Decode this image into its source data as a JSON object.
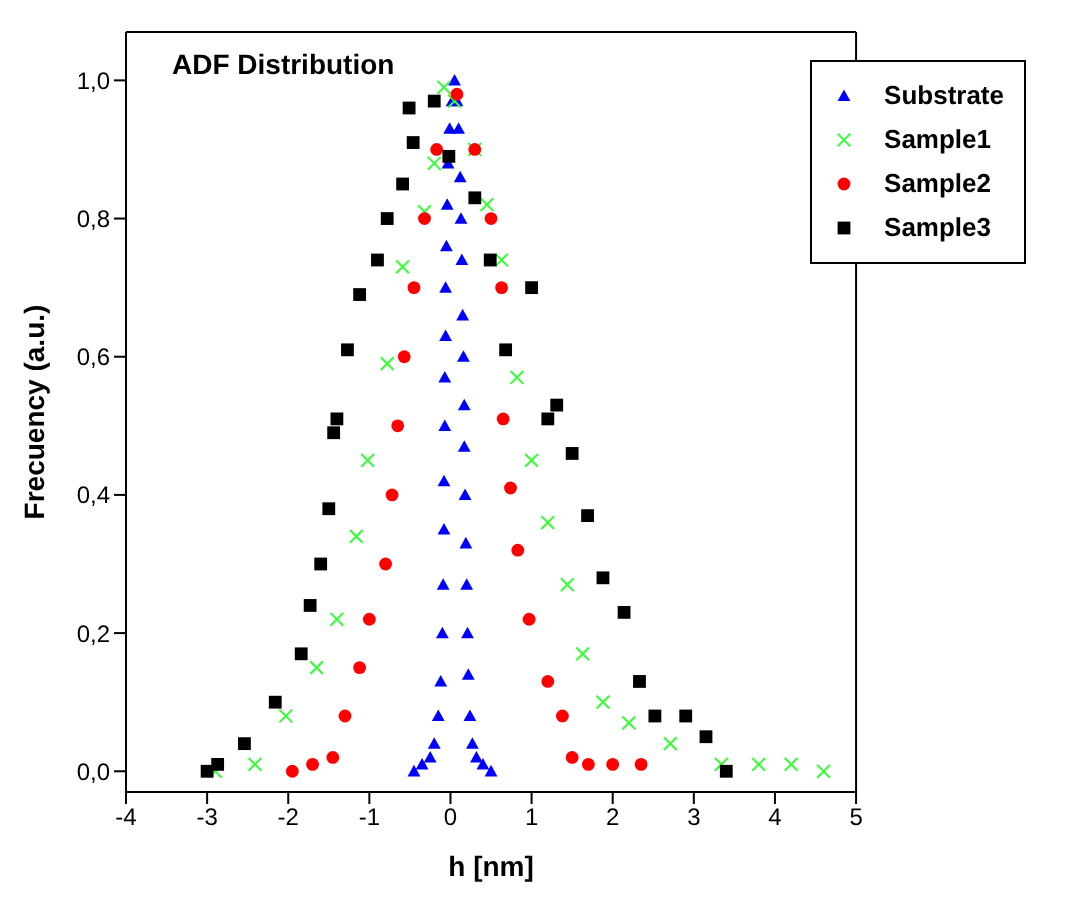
{
  "chart_data": {
    "type": "scatter",
    "title": "ADF Distribution",
    "xlabel": "h [nm]",
    "ylabel": "Frecuency (a.u.)",
    "xlim": [
      -4,
      5
    ],
    "xticks": [
      -4,
      -3,
      -2,
      -1,
      0,
      1,
      2,
      3,
      4,
      5
    ],
    "ylim": [
      -0.03,
      1.07
    ],
    "yticks": [
      {
        "value": 0,
        "label": "0,0"
      },
      {
        "value": 0.2,
        "label": "0,2"
      },
      {
        "value": 0.4,
        "label": "0,4"
      },
      {
        "value": 0.6,
        "label": "0,6"
      },
      {
        "value": 0.8,
        "label": "0,8"
      },
      {
        "value": 1,
        "label": "1,0"
      }
    ],
    "legend": "top right",
    "series": [
      {
        "name": "Substrate",
        "color": "#0000ff",
        "marker": "triangle",
        "x": [
          -0.45,
          -0.35,
          -0.25,
          -0.2,
          -0.15,
          -0.12,
          -0.1,
          -0.09,
          -0.08,
          -0.08,
          -0.07,
          -0.07,
          -0.06,
          -0.06,
          -0.05,
          -0.04,
          -0.03,
          -0.01,
          0.02,
          0.05,
          0.08,
          0.1,
          0.12,
          0.13,
          0.14,
          0.15,
          0.16,
          0.17,
          0.17,
          0.18,
          0.19,
          0.2,
          0.21,
          0.22,
          0.24,
          0.27,
          0.32,
          0.4,
          0.5
        ],
        "values": [
          0,
          0.01,
          0.02,
          0.04,
          0.08,
          0.13,
          0.2,
          0.27,
          0.35,
          0.42,
          0.5,
          0.57,
          0.63,
          0.7,
          0.76,
          0.82,
          0.88,
          0.93,
          0.97,
          1.0,
          0.97,
          0.93,
          0.86,
          0.8,
          0.74,
          0.66,
          0.6,
          0.53,
          0.47,
          0.4,
          0.33,
          0.27,
          0.2,
          0.14,
          0.08,
          0.04,
          0.02,
          0.01,
          0
        ]
      },
      {
        "name": "Sample1",
        "color": "#33ff33",
        "marker": "cross",
        "x": [
          -2.9,
          -2.41,
          -2.03,
          -1.65,
          -1.4,
          -1.16,
          -1.02,
          -0.78,
          -0.59,
          -0.32,
          -0.2,
          -0.08,
          0.05,
          0.3,
          0.45,
          0.63,
          0.82,
          1.0,
          1.2,
          1.44,
          1.63,
          1.88,
          2.2,
          2.71,
          3.34,
          3.8,
          4.2,
          4.6
        ],
        "values": [
          0,
          0.01,
          0.08,
          0.15,
          0.22,
          0.34,
          0.45,
          0.59,
          0.73,
          0.81,
          0.88,
          0.99,
          0.97,
          0.9,
          0.82,
          0.74,
          0.57,
          0.45,
          0.36,
          0.27,
          0.17,
          0.1,
          0.07,
          0.04,
          0.01,
          0.01,
          0.01,
          0
        ]
      },
      {
        "name": "Sample2",
        "color": "#ff0000",
        "marker": "circle",
        "x": [
          -1.95,
          -1.7,
          -1.45,
          -1.3,
          -1.12,
          -1.0,
          -0.8,
          -0.72,
          -0.65,
          -0.57,
          -0.45,
          -0.32,
          -0.17,
          0.08,
          0.3,
          0.5,
          0.63,
          0.65,
          0.74,
          0.83,
          0.97,
          1.2,
          1.38,
          1.5,
          1.7,
          2.0,
          2.35
        ],
        "values": [
          0.0,
          0.01,
          0.02,
          0.08,
          0.15,
          0.22,
          0.3,
          0.4,
          0.5,
          0.6,
          0.7,
          0.8,
          0.9,
          0.98,
          0.9,
          0.8,
          0.7,
          0.51,
          0.41,
          0.32,
          0.22,
          0.13,
          0.08,
          0.02,
          0.01,
          0.01,
          0.01
        ]
      },
      {
        "name": "Sample3",
        "color": "#000000",
        "marker": "square",
        "x": [
          -3.0,
          -2.87,
          -2.54,
          -2.16,
          -1.84,
          -1.73,
          -1.6,
          -1.5,
          -1.44,
          -1.4,
          -1.27,
          -1.12,
          -0.9,
          -0.78,
          -0.59,
          -0.51,
          -0.46,
          -0.2,
          -0.02,
          0.3,
          0.49,
          0.68,
          1.0,
          1.2,
          1.31,
          1.5,
          1.69,
          1.88,
          2.14,
          2.33,
          2.52,
          2.9,
          3.15,
          3.4
        ],
        "values": [
          0,
          0.01,
          0.04,
          0.1,
          0.17,
          0.24,
          0.3,
          0.38,
          0.49,
          0.51,
          0.61,
          0.69,
          0.74,
          0.8,
          0.85,
          0.96,
          0.91,
          0.97,
          0.89,
          0.83,
          0.74,
          0.61,
          0.7,
          0.51,
          0.53,
          0.46,
          0.37,
          0.28,
          0.23,
          0.13,
          0.08,
          0.08,
          0.05,
          0
        ]
      }
    ]
  }
}
